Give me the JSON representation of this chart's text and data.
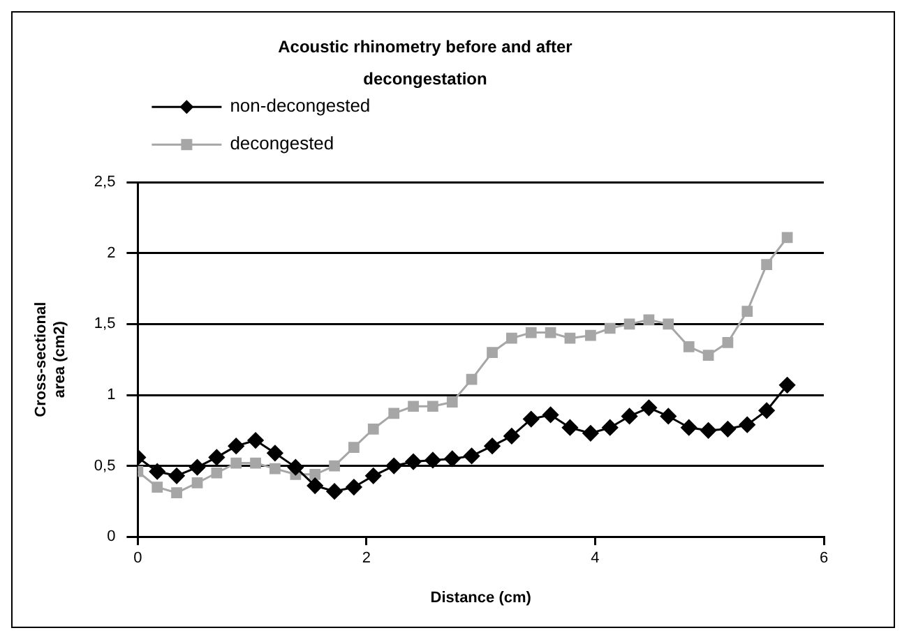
{
  "chart_data": {
    "type": "line",
    "title": "Acoustic rhinometry before and after decongestation",
    "xlabel": "Distance (cm)",
    "ylabel": "Cross-sectional area (cm2)",
    "x": [
      0,
      0.17,
      0.34,
      0.52,
      0.69,
      0.86,
      1.03,
      1.2,
      1.38,
      1.55,
      1.72,
      1.89,
      2.06,
      2.24,
      2.41,
      2.58,
      2.75,
      2.92,
      3.1,
      3.27,
      3.44,
      3.61,
      3.78,
      3.96,
      4.13,
      4.3,
      4.47,
      4.64,
      4.82,
      4.99,
      5.16,
      5.33,
      5.5,
      5.68
    ],
    "series": [
      {
        "name": "non-decongested",
        "color": "#000000",
        "marker": "diamond",
        "values": [
          0.56,
          0.46,
          0.43,
          0.49,
          0.56,
          0.64,
          0.68,
          0.59,
          0.49,
          0.36,
          0.32,
          0.35,
          0.43,
          0.5,
          0.53,
          0.54,
          0.55,
          0.57,
          0.64,
          0.71,
          0.83,
          0.86,
          0.77,
          0.73,
          0.77,
          0.85,
          0.91,
          0.85,
          0.77,
          0.75,
          0.76,
          0.79,
          0.89,
          1.07
        ]
      },
      {
        "name": "decongested",
        "color": "#a6a6a6",
        "marker": "square",
        "values": [
          0.46,
          0.35,
          0.31,
          0.38,
          0.45,
          0.52,
          0.52,
          0.48,
          0.44,
          0.44,
          0.5,
          0.63,
          0.76,
          0.87,
          0.92,
          0.92,
          0.95,
          1.11,
          1.3,
          1.4,
          1.44,
          1.44,
          1.4,
          1.42,
          1.47,
          1.5,
          1.53,
          1.5,
          1.34,
          1.28,
          1.37,
          1.59,
          1.92,
          2.11
        ]
      }
    ],
    "xlim": [
      0,
      6
    ],
    "xticks": [
      0,
      2,
      4,
      6
    ],
    "ylim": [
      0,
      2.5
    ],
    "yticks": [
      0,
      {
        "value": 0.5,
        "label": "0,5"
      },
      1,
      {
        "value": 1.5,
        "label": "1,5"
      },
      2,
      {
        "value": 2.5,
        "label": "2,5"
      }
    ],
    "grid": "y",
    "legend": "top left"
  }
}
